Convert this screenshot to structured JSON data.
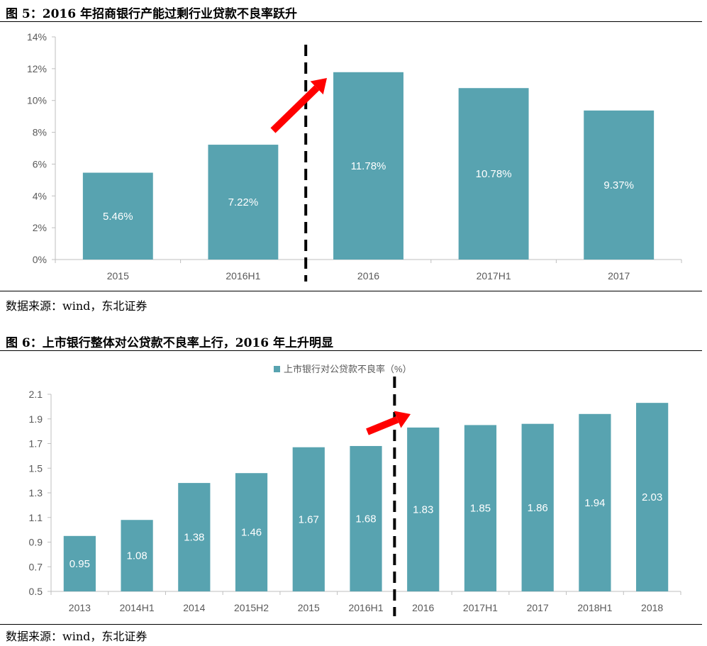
{
  "figure1": {
    "title": "图 5：2016 年招商银行产能过剩行业贷款不良率跃升",
    "source": "数据来源：wind，东北证券",
    "chart_data": {
      "type": "bar",
      "categories": [
        "2015",
        "2016H1",
        "2016",
        "2017H1",
        "2017"
      ],
      "values": [
        5.46,
        7.22,
        11.78,
        10.78,
        9.37
      ],
      "value_labels": [
        "5.46%",
        "7.22%",
        "11.78%",
        "10.78%",
        "9.37%"
      ],
      "ylim": [
        0,
        14
      ],
      "yticks": [
        0,
        2,
        4,
        6,
        8,
        10,
        12,
        14
      ],
      "ytick_labels": [
        "0%",
        "2%",
        "4%",
        "6%",
        "8%",
        "10%",
        "12%",
        "14%"
      ],
      "title": "",
      "xlabel": "",
      "ylabel": "",
      "grid": false,
      "legend": "",
      "bar_color": "#58a3b0",
      "divider_after_index": 1,
      "arrow_color": "#ff0000"
    }
  },
  "figure2": {
    "title": "图 6：上市银行整体对公贷款不良率上行，2016 年上升明显",
    "source": "数据来源：wind，东北证券",
    "chart_data": {
      "type": "bar",
      "categories": [
        "2013",
        "2014H1",
        "2014",
        "2015H2",
        "2015",
        "2016H1",
        "2016",
        "2017H1",
        "2017",
        "2018H1",
        "2018"
      ],
      "series": [
        {
          "name": "上市银行对公贷款不良率（%）",
          "values": [
            0.95,
            1.08,
            1.38,
            1.46,
            1.67,
            1.68,
            1.83,
            1.85,
            1.86,
            1.94,
            2.03
          ]
        }
      ],
      "value_labels": [
        "0.95",
        "1.08",
        "1.38",
        "1.46",
        "1.67",
        "1.68",
        "1.83",
        "1.85",
        "1.86",
        "1.94",
        "2.03"
      ],
      "ylim": [
        0.5,
        2.1
      ],
      "yticks": [
        0.5,
        0.7,
        0.9,
        1.1,
        1.3,
        1.5,
        1.7,
        1.9,
        2.1
      ],
      "ytick_labels": [
        "0.5",
        "0.7",
        "0.9",
        "1.1",
        "1.3",
        "1.5",
        "1.7",
        "1.9",
        "2.1"
      ],
      "title": "",
      "xlabel": "",
      "ylabel": "",
      "grid": false,
      "legend": "top-center",
      "bar_color": "#58a3b0",
      "divider_after_index": 5,
      "arrow_color": "#ff0000"
    }
  }
}
